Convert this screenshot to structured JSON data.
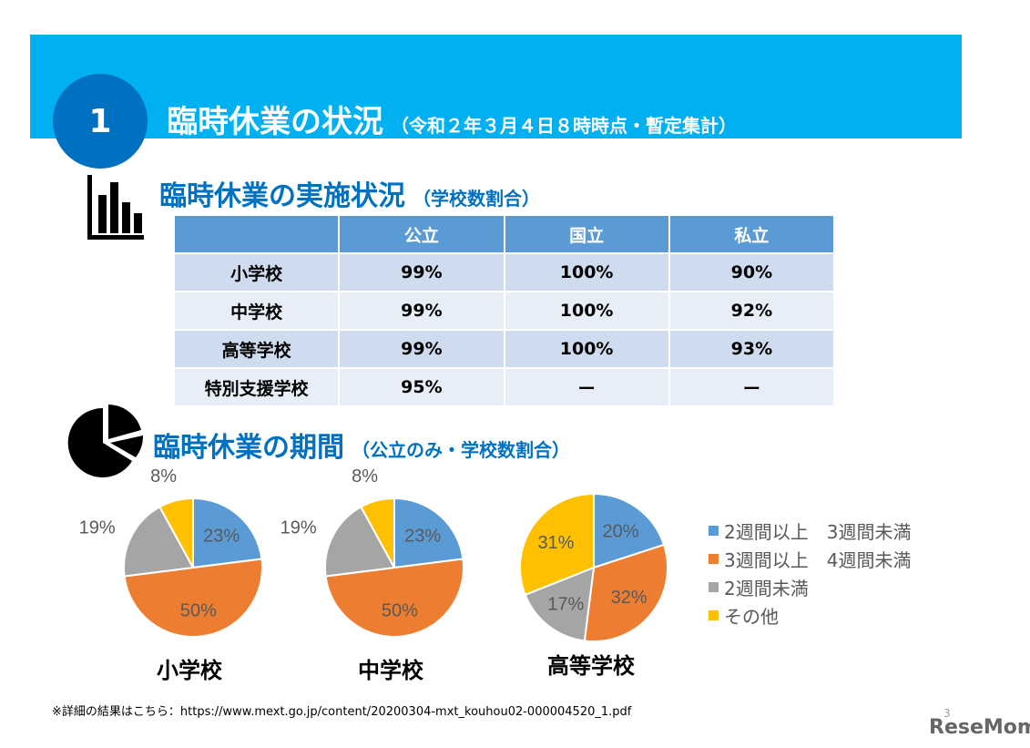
{
  "header": {
    "number": "1",
    "title": "臨時休業の状況",
    "subtitle": "（令和２年３月４日８時時点・暫定集計）"
  },
  "section1": {
    "title": "臨時休業の実施状況",
    "subtitle": "（学校数割合）",
    "icon": "bar-chart-icon"
  },
  "table": {
    "columns": [
      "",
      "公立",
      "国立",
      "私立"
    ],
    "rows": [
      [
        "小学校",
        "99%",
        "100%",
        "90%"
      ],
      [
        "中学校",
        "99%",
        "100%",
        "92%"
      ],
      [
        "高等学校",
        "99%",
        "100%",
        "93%"
      ],
      [
        "特別支援学校",
        "95%",
        "ー",
        "ー"
      ]
    ]
  },
  "section2": {
    "title": "臨時休業の期間",
    "subtitle": "（公立のみ・学校数割合）",
    "icon": "pie-chart-icon"
  },
  "chart_data": [
    {
      "type": "pie",
      "title": "小学校",
      "categories": [
        "2週間以上　3週間未満",
        "3週間以上　4週間未満",
        "2週間未満",
        "その他"
      ],
      "values": [
        23,
        50,
        19,
        8
      ],
      "labels": [
        "23%",
        "50%",
        "19%",
        "8%"
      ]
    },
    {
      "type": "pie",
      "title": "中学校",
      "categories": [
        "2週間以上　3週間未満",
        "3週間以上　4週間未満",
        "2週間未満",
        "その他"
      ],
      "values": [
        23,
        50,
        19,
        8
      ],
      "labels": [
        "23%",
        "50%",
        "19%",
        "8%"
      ]
    },
    {
      "type": "pie",
      "title": "高等学校",
      "categories": [
        "2週間以上　3週間未満",
        "3週間以上　4週間未満",
        "2週間未満",
        "その他"
      ],
      "values": [
        20,
        32,
        17,
        31
      ],
      "labels": [
        "20%",
        "32%",
        "17%",
        "31%"
      ]
    }
  ],
  "legend": [
    {
      "label": "2週間以上　3週間未満",
      "color": "#5b9bd5"
    },
    {
      "label": "3週間以上　4週間未満",
      "color": "#ed7d31"
    },
    {
      "label": "2週間未満",
      "color": "#a5a5a5"
    },
    {
      "label": "その他",
      "color": "#ffc000"
    }
  ],
  "footer": {
    "note": "※詳細の結果はこちら：https://www.mext.go.jp/content/20200304-mxt_kouhou02-000004520_1.pdf",
    "page": "3",
    "logo": "ReseMom"
  }
}
